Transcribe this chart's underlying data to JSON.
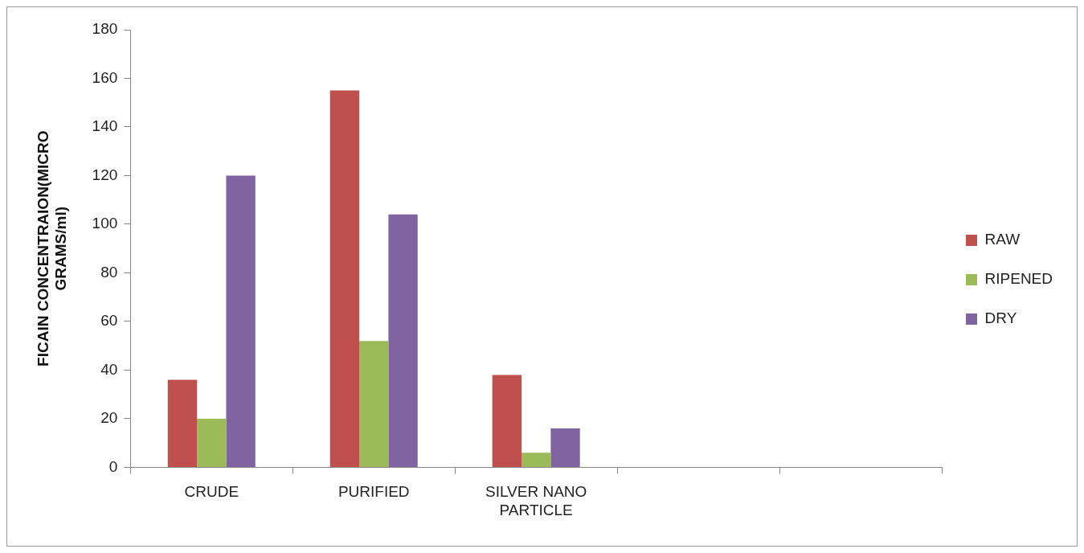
{
  "chart_data": {
    "type": "bar",
    "ylabel": "FICAIN CONCENTRAION(MICRO GRAMS/ml)",
    "categories": [
      "CRUDE",
      "PURIFIED",
      "SILVER NANO PARTICLE",
      null,
      null
    ],
    "series": [
      {
        "name": "RAW",
        "color": "#c0504d",
        "values": [
          36,
          155,
          38,
          null,
          null
        ]
      },
      {
        "name": "RIPENED",
        "color": "#9bbb59",
        "values": [
          20,
          52,
          6,
          null,
          null
        ]
      },
      {
        "name": "DRY",
        "color": "#8064a2",
        "values": [
          120,
          104,
          16,
          null,
          null
        ]
      }
    ],
    "ylim": [
      0,
      180
    ],
    "yticks": [
      0,
      20,
      40,
      60,
      80,
      100,
      120,
      140,
      160,
      180
    ],
    "grid": false,
    "legend": "right"
  }
}
